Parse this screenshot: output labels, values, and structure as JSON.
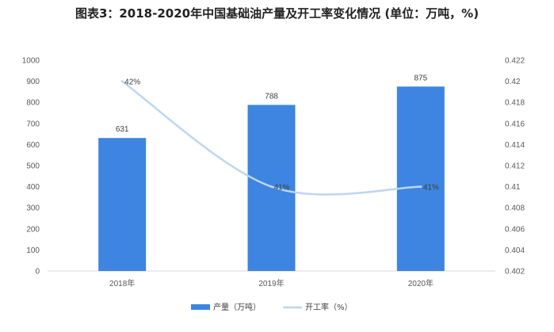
{
  "title": "图表3：2018-2020年中国基础油产量及开工率变化情况 (单位：万吨，%)",
  "chart_data": {
    "type": "bar+line",
    "categories": [
      "2018年",
      "2019年",
      "2020年"
    ],
    "series": [
      {
        "name": "产量（万吨）",
        "type": "bar",
        "axis": "left",
        "values": [
          631,
          788,
          875
        ],
        "labels": [
          "631",
          "788",
          "875"
        ],
        "color": "#3d85e0"
      },
      {
        "name": "开工率（%）",
        "type": "line",
        "axis": "right",
        "smooth": true,
        "values": [
          0.42,
          0.41,
          0.41
        ],
        "labels": [
          "42%",
          "41%",
          "41%"
        ],
        "color": "#bcd6f3"
      }
    ],
    "y_left": {
      "min": 0,
      "max": 1000,
      "step": 100,
      "ticks": [
        "0",
        "100",
        "200",
        "300",
        "400",
        "500",
        "600",
        "700",
        "800",
        "900",
        "1000"
      ]
    },
    "y_right": {
      "min": 0.402,
      "max": 0.422,
      "step": 0.002,
      "ticks": [
        "0.402",
        "0.404",
        "0.406",
        "0.408",
        "0.41",
        "0.412",
        "0.414",
        "0.416",
        "0.418",
        "0.42",
        "0.422"
      ]
    },
    "grid": false,
    "legend_position": "bottom"
  }
}
